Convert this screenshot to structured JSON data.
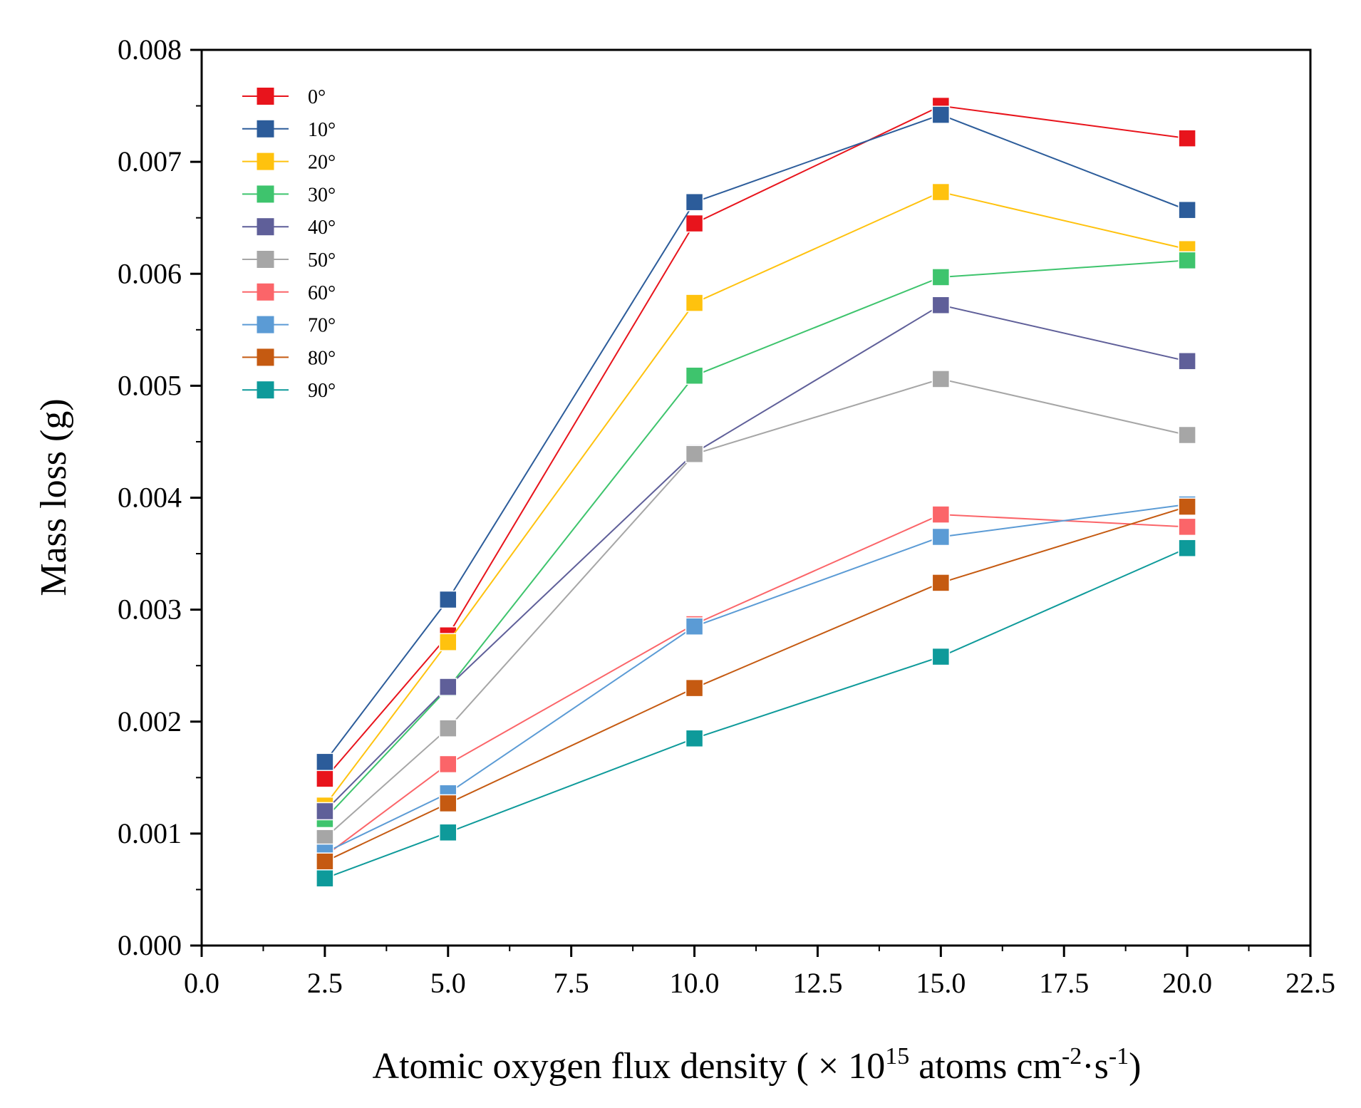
{
  "chart_data": {
    "type": "line",
    "title": "",
    "xlabel_main": "Atomic oxygen flux density ( × 10",
    "xlabel_exp1": "15",
    "xlabel_mid": " atoms cm",
    "xlabel_exp2": "-2",
    "xlabel_dot": "·s",
    "xlabel_exp3": "-1",
    "xlabel_end": ")",
    "ylabel": "Mass loss (g)",
    "xlim": [
      0.0,
      22.5
    ],
    "ylim": [
      0.0,
      0.008
    ],
    "xticks": [
      "0.0",
      "2.5",
      "5.0",
      "7.5",
      "10.0",
      "12.5",
      "15.0",
      "17.5",
      "20.0",
      "22.5"
    ],
    "yticks": [
      "0.000",
      "0.001",
      "0.002",
      "0.003",
      "0.004",
      "0.005",
      "0.006",
      "0.007",
      "0.008"
    ],
    "legend_position": "top-left",
    "x": [
      2.5,
      5.0,
      10.0,
      15.0,
      20.0
    ],
    "series": [
      {
        "name": "0°",
        "color": "#e8141c",
        "values": [
          0.00149,
          0.00277,
          0.00645,
          0.0075,
          0.00721
        ]
      },
      {
        "name": "10°",
        "color": "#2c5c9a",
        "values": [
          0.00164,
          0.00309,
          0.00664,
          0.00742,
          0.00657
        ]
      },
      {
        "name": "20°",
        "color": "#ffc20e",
        "values": [
          0.00125,
          0.00271,
          0.00574,
          0.00673,
          0.00622
        ]
      },
      {
        "name": "30°",
        "color": "#3ec46d",
        "values": [
          0.00113,
          0.0023,
          0.00509,
          0.00597,
          0.00612
        ]
      },
      {
        "name": "40°",
        "color": "#5f5f99",
        "values": [
          0.0012,
          0.00231,
          0.0044,
          0.00572,
          0.00522
        ]
      },
      {
        "name": "50°",
        "color": "#a6a6a6",
        "values": [
          0.00096,
          0.00194,
          0.00439,
          0.00506,
          0.00456
        ]
      },
      {
        "name": "60°",
        "color": "#fb6569",
        "values": [
          0.0008,
          0.00162,
          0.00287,
          0.00385,
          0.00374
        ]
      },
      {
        "name": "70°",
        "color": "#5b9bd5",
        "values": [
          0.00083,
          0.00136,
          0.00285,
          0.00365,
          0.00394
        ]
      },
      {
        "name": "80°",
        "color": "#c55a11",
        "values": [
          0.00075,
          0.00127,
          0.0023,
          0.00324,
          0.00392
        ]
      },
      {
        "name": "90°",
        "color": "#0e9a9a",
        "values": [
          0.0006,
          0.00101,
          0.00185,
          0.00258,
          0.00355
        ]
      }
    ]
  }
}
